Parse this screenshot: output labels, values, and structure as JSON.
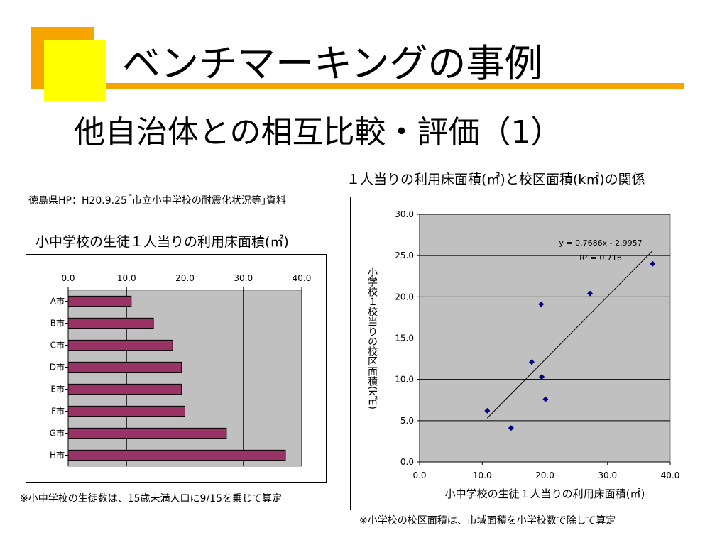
{
  "slide": {
    "title": "ベンチマーキングの事例",
    "subtitle": "他自治体との相互比較・評価（1）",
    "source_note": "徳島県HP：H20.9.25｢市立小中学校の耐震化状況等｣資料"
  },
  "bar_panel": {
    "title": "小中学校の生徒１人当りの利用床面積(㎡)",
    "footnote": "※小中学校の生徒数は、15歳未満人口に9/15を乗じて算定"
  },
  "scatter_panel": {
    "title": "１人当りの利用床面積(㎡)と校区面積(k㎡)の関係",
    "footnote": "※小学校の校区面積は、市域面積を小学校数で除して算定"
  },
  "colors": {
    "accent_orange": "#f5a400",
    "accent_yellow": "#ffff00",
    "bar_fill": "#993366",
    "marker": "#000080",
    "plot_bg": "#c0c0c0"
  },
  "chart_data": [
    {
      "type": "bar",
      "orientation": "horizontal",
      "categories": [
        "A市",
        "B市",
        "C市",
        "D市",
        "E市",
        "F市",
        "G市",
        "H市"
      ],
      "values": [
        10.8,
        14.6,
        17.9,
        19.4,
        19.4,
        20.0,
        27.1,
        37.2
      ],
      "xlim": [
        0,
        40
      ],
      "x_ticks": [
        "0.0",
        "10.0",
        "20.0",
        "30.0",
        "40.0"
      ],
      "x_axis_position": "top",
      "grid": true
    },
    {
      "type": "scatter",
      "points": [
        {
          "x": 10.8,
          "y": 6.2
        },
        {
          "x": 14.6,
          "y": 4.1
        },
        {
          "x": 17.9,
          "y": 12.1
        },
        {
          "x": 19.4,
          "y": 19.1
        },
        {
          "x": 19.5,
          "y": 10.3
        },
        {
          "x": 20.1,
          "y": 7.6
        },
        {
          "x": 27.2,
          "y": 20.4
        },
        {
          "x": 37.2,
          "y": 24.0
        }
      ],
      "trendline": {
        "slope": 0.7686,
        "intercept": -2.9957,
        "x_range": [
          10.8,
          37.2
        ]
      },
      "equation_label": "y = 0.7686x - 2.9957",
      "r2_label": "R² = 0.716",
      "xlabel": "小中学校の生徒１人当りの利用床面積(㎡)",
      "ylabel": "小学校１校当りの校区面積(k㎡)",
      "xlim": [
        0,
        40
      ],
      "ylim": [
        0,
        30
      ],
      "x_ticks": [
        "0.0",
        "10.0",
        "20.0",
        "30.0",
        "40.0"
      ],
      "y_ticks": [
        "0.0",
        "5.0",
        "10.0",
        "15.0",
        "20.0",
        "25.0",
        "30.0"
      ],
      "grid": true
    }
  ]
}
